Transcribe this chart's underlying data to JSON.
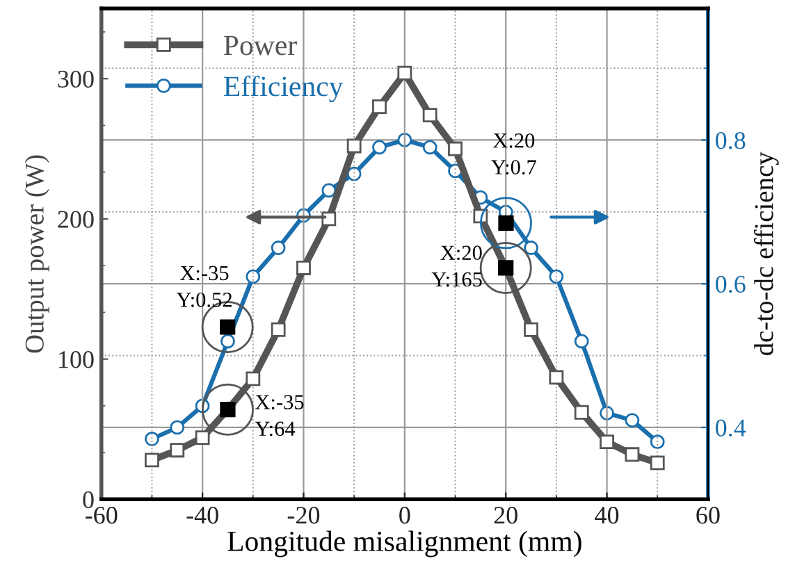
{
  "chart_data": {
    "type": "line",
    "xlabel": "Longitude misalignment (mm)",
    "ylabel": "Output power (W)",
    "y2label": "dc-to-dc efficiency",
    "x": [
      -50,
      -45,
      -40,
      -35,
      -30,
      -25,
      -20,
      -15,
      -10,
      -5,
      0,
      5,
      10,
      15,
      20,
      25,
      30,
      35,
      40,
      45,
      50
    ],
    "series": [
      {
        "name": "Power",
        "color": "#555555",
        "marker": "square",
        "values": [
          28,
          35,
          44,
          64,
          86,
          121,
          165,
          200,
          252,
          280,
          304,
          274,
          250,
          202,
          165,
          121,
          87,
          62,
          41,
          32,
          26
        ]
      },
      {
        "name": "Efficiency",
        "color": "#1a6fad",
        "marker": "circle",
        "axis": "y2",
        "values": [
          0.384,
          0.4,
          0.43,
          0.52,
          0.61,
          0.65,
          0.695,
          0.73,
          0.753,
          0.79,
          0.8,
          0.79,
          0.757,
          0.72,
          0.7,
          0.65,
          0.61,
          0.52,
          0.42,
          0.41,
          0.38
        ]
      }
    ],
    "xlim": [
      -60,
      60
    ],
    "xticks": [
      -60,
      -40,
      -20,
      0,
      20,
      40,
      60
    ],
    "ylim": [
      0,
      350
    ],
    "yticks": [
      0,
      100,
      200,
      300
    ],
    "y2lim": [
      0.3,
      0.983
    ],
    "y2ticks": [
      0.4,
      0.6,
      0.8
    ],
    "annotations": [
      "X:-35\nY:0.52",
      {
        "text": "X:-35\nY:64",
        "x": -35,
        "y": 64
      },
      "X:20\nY:0.7",
      {
        "text": "X:20\nY:165",
        "x": 20,
        "y": 165
      }
    ],
    "grid": true,
    "legend": "top left"
  }
}
